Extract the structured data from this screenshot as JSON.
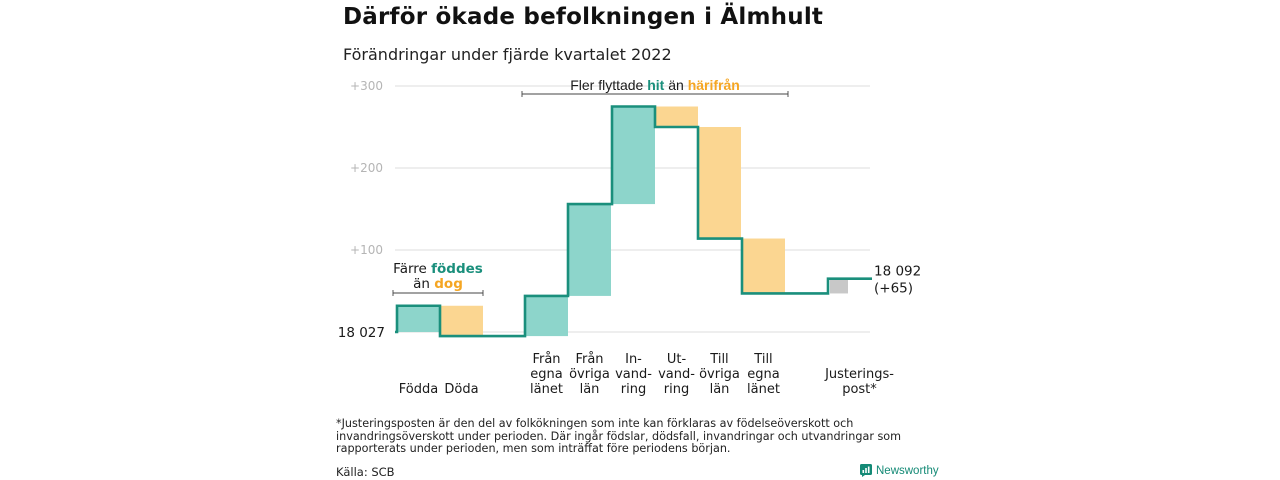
{
  "title": "Därför ökade befolkningen i Älmhult",
  "subtitle": "Förändringar under fjärde kvartalet 2022",
  "chart_data": {
    "type": "waterfall",
    "ylim": [
      -8,
      300
    ],
    "yticks": [
      100,
      200,
      300
    ],
    "ytick_labels": [
      "+100",
      "+200",
      "+300"
    ],
    "base_label": "18 027",
    "end_label_line1": "18 092",
    "end_label_line2": "(+65)",
    "steps": [
      {
        "category": "Födda",
        "label_lines": [
          "Födda"
        ],
        "kind": "in",
        "start": 0,
        "end": 32
      },
      {
        "category": "Döda",
        "label_lines": [
          "Döda"
        ],
        "kind": "out",
        "start": 32,
        "end": -5
      },
      {
        "category": "Från egna länet",
        "label_lines": [
          "Från",
          "egna",
          "länet"
        ],
        "kind": "in",
        "start": -5,
        "end": 44
      },
      {
        "category": "Från övriga län",
        "label_lines": [
          "Från",
          "övriga",
          "län"
        ],
        "kind": "in",
        "start": 44,
        "end": 156
      },
      {
        "category": "Invandring",
        "label_lines": [
          "In-",
          "vand-",
          "ring"
        ],
        "kind": "in",
        "start": 156,
        "end": 275
      },
      {
        "category": "Utvandring",
        "label_lines": [
          "Ut-",
          "vand-",
          "ring"
        ],
        "kind": "out",
        "start": 275,
        "end": 250
      },
      {
        "category": "Till övriga län",
        "label_lines": [
          "Till",
          "övriga",
          "län"
        ],
        "kind": "out",
        "start": 250,
        "end": 114
      },
      {
        "category": "Till egna länet",
        "label_lines": [
          "Till",
          "egna",
          "länet"
        ],
        "kind": "out",
        "start": 114,
        "end": 47
      },
      {
        "category": "Justeringspost*",
        "label_lines": [
          "Justerings-",
          "post*"
        ],
        "kind": "adjust",
        "start": 47,
        "end": 65
      }
    ],
    "annotations": {
      "births": {
        "line1": "Färre ",
        "line1_highlight": "föddes",
        "line2": "än ",
        "line2_highlight": "dog"
      },
      "migration": {
        "prefix": "Fler flyttade ",
        "highlight1": "hit",
        "middle": " än ",
        "highlight2": "härifrån"
      }
    }
  },
  "colors": {
    "in_fill": "#8dd5cb",
    "out_fill": "#fbd691",
    "adjust_fill": "#c8c8c8",
    "line": "#1a8f7c",
    "highlight_in": "#1a8f7c",
    "highlight_out": "#f5a623",
    "grid": "#dddddd",
    "tick": "#b5b5b5"
  },
  "footnote": "*Justeringsposten är den del av folkökningen som inte kan förklaras av födelseöverskott och invandringsöverskott under perioden. Där ingår födslar, dödsfall, invandringar och utvandringar som rapporterats under perioden, men som inträffat före periodens början.",
  "source": "Källa: SCB",
  "brand": "Newsworthy"
}
